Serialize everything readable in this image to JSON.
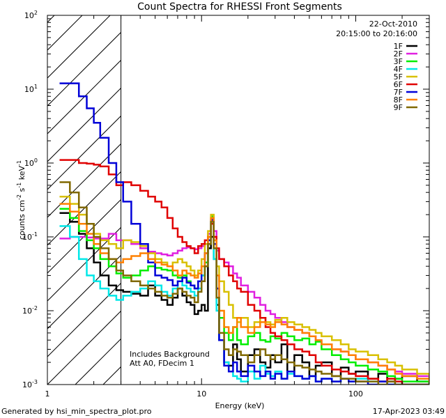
{
  "chart_data": {
    "type": "line",
    "title": "Count Spectra for RHESSI Front Segments",
    "xlabel": "Energy (keV)",
    "ylabel_main": "counts cm",
    "ylabel_exp1": "-2",
    "ylabel_mid": " s",
    "ylabel_exp2": "-1",
    "ylabel_end": " keV",
    "ylabel_exp3": "-1",
    "xscale": "log",
    "yscale": "log",
    "xlim": [
      1,
      300
    ],
    "ylim": [
      0.001,
      100
    ],
    "x_ticks": [
      {
        "value": 1,
        "label": "1"
      },
      {
        "value": 10,
        "label": "10"
      },
      {
        "value": 100,
        "label": "100"
      }
    ],
    "y_ticks": [
      {
        "value": 0.001,
        "base": "10",
        "exp": "-3"
      },
      {
        "value": 0.01,
        "base": "10",
        "exp": "-2"
      },
      {
        "value": 0.1,
        "base": "10",
        "exp": "-1"
      },
      {
        "value": 1,
        "base": "10",
        "exp": "0"
      },
      {
        "value": 10,
        "base": "10",
        "exp": "1"
      },
      {
        "value": 100,
        "base": "10",
        "exp": "2"
      }
    ],
    "shaded_region": {
      "x_from": 1,
      "x_to": 3,
      "pattern": "diagonal-hatch"
    },
    "date_text": "22-Oct-2010",
    "time_text": "20:15:00 to 20:16:00",
    "annotation_line1": "Includes Background",
    "annotation_line2": "Att A0, FDecim 1",
    "footer_left": "Generated by hsi_min_spectra_plot.pro",
    "footer_right": "17-Apr-2023 03:49",
    "energy_bins": [
      1.2,
      1.4,
      1.6,
      1.8,
      2.0,
      2.2,
      2.5,
      2.8,
      3.1,
      3.5,
      4.0,
      4.5,
      5.0,
      5.5,
      6.0,
      6.5,
      7.0,
      7.5,
      8.0,
      8.5,
      9.0,
      9.5,
      10.0,
      10.5,
      11.0,
      11.5,
      12.0,
      12.5,
      13.0,
      14.0,
      15.0,
      16.0,
      17.0,
      18.0,
      20.0,
      22.0,
      24.0,
      26.0,
      28.0,
      30.0,
      33.0,
      36.0,
      40.0,
      45.0,
      50.0,
      55.0,
      60.0,
      70.0,
      80.0,
      90.0,
      100.0,
      120.0,
      140.0,
      160.0,
      180.0,
      200.0,
      250.0,
      300.0
    ],
    "series": [
      {
        "name": "1F",
        "color": "#000000",
        "values": [
          0.21,
          0.16,
          0.11,
          0.07,
          0.045,
          0.03,
          0.022,
          0.019,
          0.018,
          0.017,
          0.016,
          0.022,
          0.016,
          0.014,
          0.012,
          0.015,
          0.02,
          0.016,
          0.013,
          0.012,
          0.009,
          0.01,
          0.012,
          0.01,
          0.07,
          0.1,
          0.05,
          0.012,
          0.004,
          0.002,
          0.0018,
          0.0035,
          0.0022,
          0.0015,
          0.0025,
          0.003,
          0.002,
          0.0017,
          0.0025,
          0.002,
          0.0035,
          0.0015,
          0.0025,
          0.002,
          0.0013,
          0.0018,
          0.002,
          0.0013,
          0.0017,
          0.0014,
          0.0015,
          0.0012,
          0.0014,
          0.0011,
          0.0012,
          0.0013,
          0.0011,
          0.001
        ]
      },
      {
        "name": "2F",
        "color": "#e020e0",
        "values": [
          0.095,
          0.1,
          0.1,
          0.098,
          0.095,
          0.095,
          0.11,
          0.09,
          0.09,
          0.08,
          0.07,
          0.063,
          0.06,
          0.058,
          0.056,
          0.06,
          0.065,
          0.07,
          0.072,
          0.07,
          0.068,
          0.07,
          0.075,
          0.08,
          0.11,
          0.18,
          0.12,
          0.065,
          0.05,
          0.045,
          0.04,
          0.032,
          0.028,
          0.022,
          0.018,
          0.015,
          0.012,
          0.01,
          0.009,
          0.008,
          0.007,
          0.006,
          0.0055,
          0.005,
          0.0045,
          0.004,
          0.0035,
          0.003,
          0.0028,
          0.0025,
          0.0022,
          0.002,
          0.0018,
          0.0016,
          0.0015,
          0.0014,
          0.0013,
          0.0012
        ]
      },
      {
        "name": "3F",
        "color": "#00ee00",
        "values": [
          0.24,
          0.18,
          0.12,
          0.09,
          0.07,
          0.05,
          0.04,
          0.032,
          0.028,
          0.03,
          0.035,
          0.04,
          0.038,
          0.036,
          0.035,
          0.03,
          0.028,
          0.03,
          0.025,
          0.022,
          0.02,
          0.025,
          0.03,
          0.045,
          0.09,
          0.19,
          0.08,
          0.02,
          0.008,
          0.005,
          0.004,
          0.006,
          0.004,
          0.0035,
          0.0045,
          0.005,
          0.004,
          0.0038,
          0.0045,
          0.0042,
          0.005,
          0.0045,
          0.004,
          0.0042,
          0.0035,
          0.0038,
          0.003,
          0.0025,
          0.0022,
          0.002,
          0.0018,
          0.0016,
          0.0015,
          0.0013,
          0.0012,
          0.0011,
          0.0011,
          0.001
        ]
      },
      {
        "name": "4F",
        "color": "#00e8e8",
        "values": [
          0.14,
          0.1,
          0.05,
          0.03,
          0.025,
          0.02,
          0.016,
          0.014,
          0.016,
          0.018,
          0.02,
          0.025,
          0.022,
          0.018,
          0.016,
          0.02,
          0.025,
          0.022,
          0.02,
          0.018,
          0.016,
          0.02,
          0.03,
          0.04,
          0.08,
          0.15,
          0.05,
          0.01,
          0.004,
          0.002,
          0.0015,
          0.0013,
          0.0012,
          0.0011,
          0.0015,
          0.0012,
          0.0018,
          0.0014,
          0.0013,
          0.0015,
          0.0012,
          0.0014,
          0.0013,
          0.0012,
          0.0013,
          0.0011,
          0.0012,
          0.0011,
          0.0012,
          0.0011,
          0.0012,
          0.0011,
          0.0011,
          0.001,
          0.0011,
          0.001,
          0.001,
          0.001
        ]
      },
      {
        "name": "5F",
        "color": "#d8c000",
        "values": [
          0.35,
          0.28,
          0.2,
          0.15,
          0.11,
          0.09,
          0.08,
          0.07,
          0.09,
          0.085,
          0.075,
          0.06,
          0.05,
          0.045,
          0.04,
          0.045,
          0.05,
          0.045,
          0.04,
          0.035,
          0.03,
          0.035,
          0.05,
          0.08,
          0.12,
          0.2,
          0.1,
          0.04,
          0.025,
          0.018,
          0.012,
          0.008,
          0.007,
          0.008,
          0.006,
          0.007,
          0.008,
          0.007,
          0.0065,
          0.0075,
          0.008,
          0.007,
          0.0065,
          0.006,
          0.0055,
          0.005,
          0.0045,
          0.004,
          0.0035,
          0.003,
          0.0028,
          0.0025,
          0.0022,
          0.002,
          0.0018,
          0.0016,
          0.0014,
          0.0013
        ]
      },
      {
        "name": "6F",
        "color": "#e00000",
        "values": [
          1.1,
          1.1,
          1.0,
          0.98,
          0.95,
          0.9,
          0.7,
          0.5,
          0.55,
          0.5,
          0.42,
          0.35,
          0.3,
          0.25,
          0.18,
          0.13,
          0.1,
          0.085,
          0.075,
          0.07,
          0.06,
          0.075,
          0.08,
          0.09,
          0.1,
          0.15,
          0.1,
          0.07,
          0.05,
          0.04,
          0.03,
          0.025,
          0.02,
          0.018,
          0.012,
          0.01,
          0.008,
          0.006,
          0.005,
          0.0045,
          0.004,
          0.0035,
          0.003,
          0.0028,
          0.0025,
          0.002,
          0.0018,
          0.0016,
          0.0015,
          0.0014,
          0.0013,
          0.0012,
          0.0011,
          0.0012,
          0.0011,
          0.001,
          0.001,
          0.001
        ]
      },
      {
        "name": "7F",
        "color": "#0000d8",
        "values": [
          12.0,
          12.0,
          8.0,
          5.5,
          3.5,
          2.2,
          1.0,
          0.55,
          0.3,
          0.15,
          0.08,
          0.045,
          0.03,
          0.028,
          0.026,
          0.022,
          0.025,
          0.028,
          0.024,
          0.022,
          0.02,
          0.025,
          0.04,
          0.06,
          0.09,
          0.17,
          0.08,
          0.02,
          0.004,
          0.0018,
          0.0015,
          0.002,
          0.0015,
          0.0013,
          0.0018,
          0.0015,
          0.0013,
          0.0015,
          0.0012,
          0.0014,
          0.0012,
          0.0015,
          0.0013,
          0.0012,
          0.0013,
          0.0011,
          0.0012,
          0.0011,
          0.0012,
          0.0011,
          0.0011,
          0.001,
          0.0011,
          0.001,
          0.001,
          0.001,
          0.001,
          0.001
        ]
      },
      {
        "name": "8F",
        "color": "#ff8000",
        "values": [
          0.28,
          0.22,
          0.15,
          0.11,
          0.08,
          0.06,
          0.05,
          0.045,
          0.05,
          0.055,
          0.06,
          0.05,
          0.045,
          0.042,
          0.04,
          0.035,
          0.03,
          0.035,
          0.032,
          0.03,
          0.028,
          0.032,
          0.04,
          0.06,
          0.1,
          0.18,
          0.09,
          0.03,
          0.01,
          0.006,
          0.005,
          0.006,
          0.008,
          0.006,
          0.005,
          0.006,
          0.007,
          0.0065,
          0.006,
          0.007,
          0.0065,
          0.006,
          0.0055,
          0.005,
          0.0045,
          0.004,
          0.0035,
          0.003,
          0.0028,
          0.0025,
          0.0022,
          0.002,
          0.0018,
          0.0016,
          0.0014,
          0.0013,
          0.0012,
          0.0011
        ]
      },
      {
        "name": "9F",
        "color": "#806800",
        "values": [
          0.55,
          0.4,
          0.25,
          0.15,
          0.1,
          0.07,
          0.05,
          0.035,
          0.03,
          0.025,
          0.022,
          0.02,
          0.018,
          0.016,
          0.015,
          0.017,
          0.02,
          0.018,
          0.016,
          0.015,
          0.013,
          0.018,
          0.025,
          0.04,
          0.08,
          0.16,
          0.07,
          0.015,
          0.005,
          0.003,
          0.0025,
          0.003,
          0.0028,
          0.0025,
          0.002,
          0.0025,
          0.003,
          0.0025,
          0.0022,
          0.0025,
          0.0022,
          0.002,
          0.0018,
          0.0017,
          0.0016,
          0.0015,
          0.0014,
          0.0013,
          0.0012,
          0.0012,
          0.0011,
          0.0011,
          0.001,
          0.0011,
          0.001,
          0.001,
          0.001,
          0.001
        ]
      }
    ]
  }
}
